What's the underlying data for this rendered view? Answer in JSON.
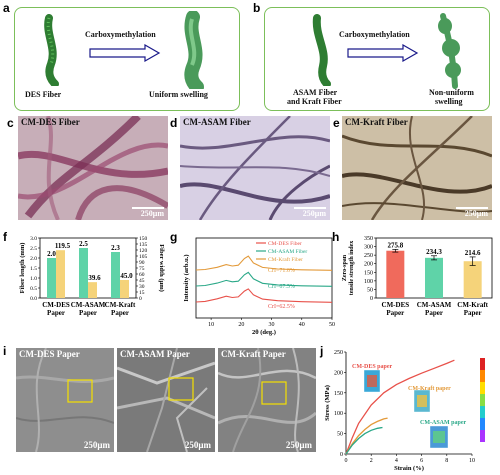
{
  "panels": {
    "a": "a",
    "b": "b",
    "c": "c",
    "d": "d",
    "e": "e",
    "f": "f",
    "g": "g",
    "h": "h",
    "i": "i",
    "j": "j"
  },
  "panel_a": {
    "arrow_label": "Carboxymethylation",
    "left_caption": "DES Fiber",
    "right_caption": "Uniform swelling"
  },
  "panel_b": {
    "arrow_label": "Carboxymethylation",
    "left_caption_1": "ASAM Fiber",
    "left_caption_2": "and Kraft Fiber",
    "right_caption_1": "Non-uniform",
    "right_caption_2": "swelling"
  },
  "micrographs": [
    {
      "title": "CM-DES Fiber",
      "scale": "250μm"
    },
    {
      "title": "CM-ASAM Fiber",
      "scale": "250μm"
    },
    {
      "title": "CM-Kraft Fiber",
      "scale": "250μm"
    }
  ],
  "sem": [
    {
      "title": "CM-DES Paper",
      "scale": "250μm"
    },
    {
      "title": "CM-ASAM Paper",
      "scale": "250μm"
    },
    {
      "title": "CM-Kraft Paper",
      "scale": "250μm"
    }
  ],
  "colors": {
    "green_bar": "#5fd3a8",
    "yellow_bar": "#f5d37a",
    "red_bar": "#f06a5c",
    "box_border": "#7cbf5a"
  },
  "chart_data": [
    {
      "type": "bar",
      "panel": "f",
      "categories": [
        "CM-DES Paper",
        "CM-ASAM Paper",
        "CM-Kraft Paper"
      ],
      "series": [
        {
          "name": "Fiber length",
          "axis": "left",
          "values": [
            2.0,
            2.5,
            2.3
          ]
        },
        {
          "name": "Fiber width",
          "axis": "right",
          "values": [
            119.5,
            39.6,
            45.0
          ]
        }
      ],
      "value_labels_left": [
        "2.0",
        "2.5",
        "2.3"
      ],
      "value_labels_right": [
        "119.5",
        "39.6",
        "45.0"
      ],
      "ylabel_left": "Fiber length (mm)",
      "ylabel_right": "Fiber width (μm)",
      "ylim_left": [
        0,
        3.0
      ],
      "ylim_right": [
        0,
        150
      ],
      "yticks_left": [
        "0.0",
        "0.5",
        "1.0",
        "1.5",
        "2.0",
        "2.5",
        "3.0"
      ],
      "yticks_right": [
        "0",
        "15",
        "30",
        "45",
        "60",
        "75",
        "90",
        "105",
        "120",
        "135",
        "150"
      ]
    },
    {
      "type": "line",
      "panel": "g",
      "xlabel": "2θ (deg.)",
      "ylabel": "Intensity (arb.u.)",
      "xlim": [
        5,
        50
      ],
      "xticks": [
        "10",
        "20",
        "30",
        "40",
        "50"
      ],
      "legend": [
        "CM-DES Fiber",
        "CM-ASAM Fiber",
        "CM-Kraft Fiber"
      ],
      "series": [
        {
          "name": "CM-DES Fiber",
          "color": "#e8514a",
          "crystallinity": "CrI=62.5%",
          "x": [
            5,
            8,
            12,
            15,
            17,
            19,
            21,
            22.3,
            24,
            27,
            32,
            40,
            50
          ],
          "y": [
            0.1,
            0.14,
            0.3,
            0.46,
            0.38,
            0.42,
            0.78,
            0.92,
            0.55,
            0.28,
            0.18,
            0.12,
            0.08
          ]
        },
        {
          "name": "CM-ASAM Fiber",
          "color": "#2aa888",
          "crystallinity": "CrI=67.5%",
          "x": [
            5,
            8,
            12,
            15,
            17,
            19,
            21,
            22.3,
            24,
            27,
            32,
            40,
            50
          ],
          "y": [
            0.1,
            0.13,
            0.28,
            0.45,
            0.36,
            0.4,
            0.8,
            0.95,
            0.55,
            0.27,
            0.17,
            0.11,
            0.08
          ]
        },
        {
          "name": "CM-Kraft Fiber",
          "color": "#e39a3a",
          "crystallinity": "CrI=71.6%",
          "x": [
            5,
            8,
            12,
            15,
            17,
            19,
            21,
            22.3,
            24,
            27,
            32,
            40,
            50
          ],
          "y": [
            0.1,
            0.13,
            0.27,
            0.44,
            0.35,
            0.4,
            0.82,
            0.97,
            0.54,
            0.26,
            0.16,
            0.11,
            0.08
          ]
        }
      ]
    },
    {
      "type": "bar",
      "panel": "h",
      "categories": [
        "CM-DES Paper",
        "CM-ASAM Paper",
        "CM-Kraft Paper"
      ],
      "values": [
        275.8,
        234.3,
        214.6
      ],
      "errors": [
        8,
        12,
        25
      ],
      "value_labels": [
        "275.8",
        "234.3",
        "214.6"
      ],
      "ylabel": "Zero-span tensile strength index",
      "ylim": [
        0,
        350
      ],
      "yticks": [
        "0",
        "50",
        "100",
        "150",
        "200",
        "250",
        "300",
        "350"
      ]
    },
    {
      "type": "line",
      "panel": "j",
      "xlabel": "Strain (%)",
      "ylabel": "Stress (MPa)",
      "xlim": [
        0,
        10
      ],
      "ylim": [
        0,
        250
      ],
      "xticks": [
        "0",
        "2",
        "4",
        "6",
        "8",
        "10"
      ],
      "yticks": [
        "0",
        "50",
        "100",
        "150",
        "200",
        "250"
      ],
      "annotations": [
        "CM-DES paper",
        "CM-Kraft paper",
        "CM-ASAM paper"
      ],
      "series": [
        {
          "name": "CM-DES paper",
          "color": "#e8514a",
          "x": [
            0,
            0.5,
            1,
            2,
            3,
            4,
            5,
            6,
            7,
            8,
            8.6
          ],
          "y": [
            0,
            40,
            75,
            120,
            150,
            170,
            185,
            198,
            210,
            222,
            230
          ]
        },
        {
          "name": "CM-Kraft paper",
          "color": "#e39a3a",
          "x": [
            0,
            0.5,
            1,
            1.5,
            2,
            2.5,
            3,
            3.3
          ],
          "y": [
            0,
            25,
            45,
            60,
            72,
            80,
            86,
            88
          ]
        },
        {
          "name": "CM-ASAM paper",
          "color": "#2aa888",
          "x": [
            0,
            0.5,
            1,
            1.5,
            2,
            2.5,
            2.9
          ],
          "y": [
            0,
            22,
            38,
            50,
            58,
            63,
            65
          ]
        }
      ]
    }
  ]
}
